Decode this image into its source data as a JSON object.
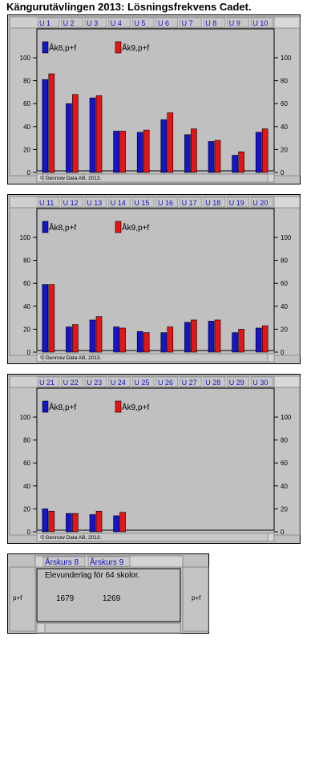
{
  "page_title": "Kängurutävlingen 2013: Lösningsfrekvens Cadet.",
  "chart_data": [
    {
      "type": "bar",
      "categories": [
        "U 1",
        "U 2",
        "U 3",
        "U 4",
        "U 5",
        "U 6",
        "U 7",
        "U 8",
        "U 9",
        "U 10"
      ],
      "series": [
        {
          "name": "Åk8,p+f",
          "color": "#1414c8",
          "values": [
            81,
            60,
            65,
            36,
            35,
            46,
            33,
            27,
            15,
            35
          ]
        },
        {
          "name": "Åk9,p+f",
          "color": "#e61414",
          "values": [
            86,
            68,
            67,
            36,
            37,
            52,
            38,
            28,
            18,
            38
          ]
        }
      ],
      "yticks": [
        0,
        20,
        40,
        60,
        80,
        100
      ],
      "ylim": [
        0,
        105
      ],
      "copyright": "© Gennow Data AB, 2013.",
      "legend": "top-left"
    },
    {
      "type": "bar",
      "categories": [
        "U 11",
        "U 12",
        "U 13",
        "U 14",
        "U 15",
        "U 16",
        "U 17",
        "U 18",
        "U 19",
        "U 20"
      ],
      "series": [
        {
          "name": "Åk8,p+f",
          "color": "#1414c8",
          "values": [
            59,
            22,
            28,
            22,
            18,
            17,
            26,
            27,
            17,
            21
          ]
        },
        {
          "name": "Åk9,p+f",
          "color": "#e61414",
          "values": [
            59,
            24,
            31,
            21,
            17,
            22,
            28,
            28,
            20,
            23
          ]
        }
      ],
      "yticks": [
        0,
        20,
        40,
        60,
        80,
        100
      ],
      "ylim": [
        0,
        105
      ],
      "copyright": "© Gennow Data AB, 2013.",
      "legend": "top-left"
    },
    {
      "type": "bar",
      "categories": [
        "U 21",
        "U 22",
        "U 23",
        "U 24",
        "U 25",
        "U 26",
        "U 27",
        "U 28",
        "U 29",
        "U 30"
      ],
      "series": [
        {
          "name": "Åk8,p+f",
          "color": "#1414c8",
          "values": [
            20,
            16,
            15,
            14,
            null,
            null,
            null,
            null,
            null,
            null
          ]
        },
        {
          "name": "Åk9,p+f",
          "color": "#e61414",
          "values": [
            18,
            16,
            18,
            17,
            null,
            null,
            null,
            null,
            null,
            null
          ]
        }
      ],
      "yticks": [
        0,
        20,
        40,
        60,
        80,
        100
      ],
      "ylim": [
        0,
        105
      ],
      "copyright": "© Gennow Data AB, 2013.",
      "legend": "top-left"
    }
  ],
  "summary": {
    "tabs": [
      "Årskurs 8",
      "Årskurs 9"
    ],
    "left_label": "p+f",
    "right_label": "p+f",
    "note": "Elevunderlag för 64 skolor.",
    "counts": [
      "1679",
      "1269"
    ]
  },
  "colors": {
    "panel_bg": "#c0c0c0",
    "tab_text": "#1010c0",
    "ak8": "#1414c8",
    "ak9": "#e61414"
  }
}
